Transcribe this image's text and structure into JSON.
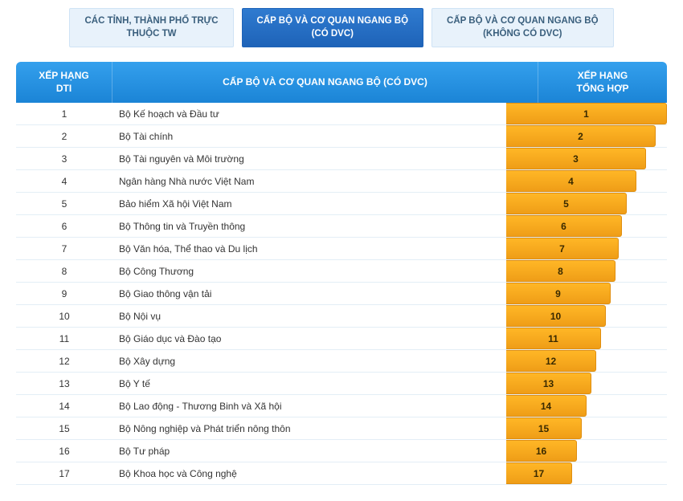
{
  "tabs": [
    {
      "label": "CÁC TỈNH, THÀNH PHỐ TRỰC\nTHUỘC TW",
      "active": false
    },
    {
      "label": "CẤP BỘ VÀ CƠ QUAN NGANG BỘ\n(CÓ DVC)",
      "active": true
    },
    {
      "label": "CẤP BỘ VÀ CƠ QUAN NGANG BỘ\n(KHÔNG CÓ DVC)",
      "active": false
    }
  ],
  "table": {
    "headers": {
      "rank": "XẾP HẠNG\nDTI",
      "name": "CẤP BỘ VÀ CƠ QUAN NGANG BỘ (CÓ DVC)",
      "total": "XẾP HẠNG\nTỔNG HỢP"
    },
    "rows": [
      {
        "rank": "1",
        "name": "Bộ Kế hoạch và Đầu tư",
        "total": "1",
        "bar_pct": 100
      },
      {
        "rank": "2",
        "name": "Bộ Tài chính",
        "total": "2",
        "bar_pct": 93
      },
      {
        "rank": "3",
        "name": "Bộ Tài nguyên và Môi trường",
        "total": "3",
        "bar_pct": 87
      },
      {
        "rank": "4",
        "name": "Ngân hàng Nhà nước Việt Nam",
        "total": "4",
        "bar_pct": 81
      },
      {
        "rank": "5",
        "name": "Bảo hiểm Xã hội Việt Nam",
        "total": "5",
        "bar_pct": 75
      },
      {
        "rank": "6",
        "name": "Bộ Thông tin và Truyền thông",
        "total": "6",
        "bar_pct": 72
      },
      {
        "rank": "7",
        "name": "Bộ Văn hóa, Thể thao và Du lịch",
        "total": "7",
        "bar_pct": 70
      },
      {
        "rank": "8",
        "name": "Bộ Công Thương",
        "total": "8",
        "bar_pct": 68
      },
      {
        "rank": "9",
        "name": "Bộ Giao thông vận tải",
        "total": "9",
        "bar_pct": 65
      },
      {
        "rank": "10",
        "name": "Bộ Nội vụ",
        "total": "10",
        "bar_pct": 62
      },
      {
        "rank": "11",
        "name": "Bộ Giáo dục và Đào tạo",
        "total": "11",
        "bar_pct": 59
      },
      {
        "rank": "12",
        "name": "Bộ Xây dựng",
        "total": "12",
        "bar_pct": 56
      },
      {
        "rank": "13",
        "name": "Bộ Y tế",
        "total": "13",
        "bar_pct": 53
      },
      {
        "rank": "14",
        "name": "Bộ Lao động - Thương Binh và Xã hội",
        "total": "14",
        "bar_pct": 50
      },
      {
        "rank": "15",
        "name": "Bộ Nông nghiệp và Phát triển nông thôn",
        "total": "15",
        "bar_pct": 47
      },
      {
        "rank": "16",
        "name": "Bộ Tư pháp",
        "total": "16",
        "bar_pct": 44
      },
      {
        "rank": "17",
        "name": "Bộ Khoa học và Công nghệ",
        "total": "17",
        "bar_pct": 41
      }
    ],
    "bar_text_color": "#3a2a00",
    "header_gradient_top": "#34a0ed",
    "header_gradient_bottom": "#1b84d6",
    "bar_gradient_top": "#ffb726",
    "bar_gradient_bottom": "#ef9d17"
  }
}
